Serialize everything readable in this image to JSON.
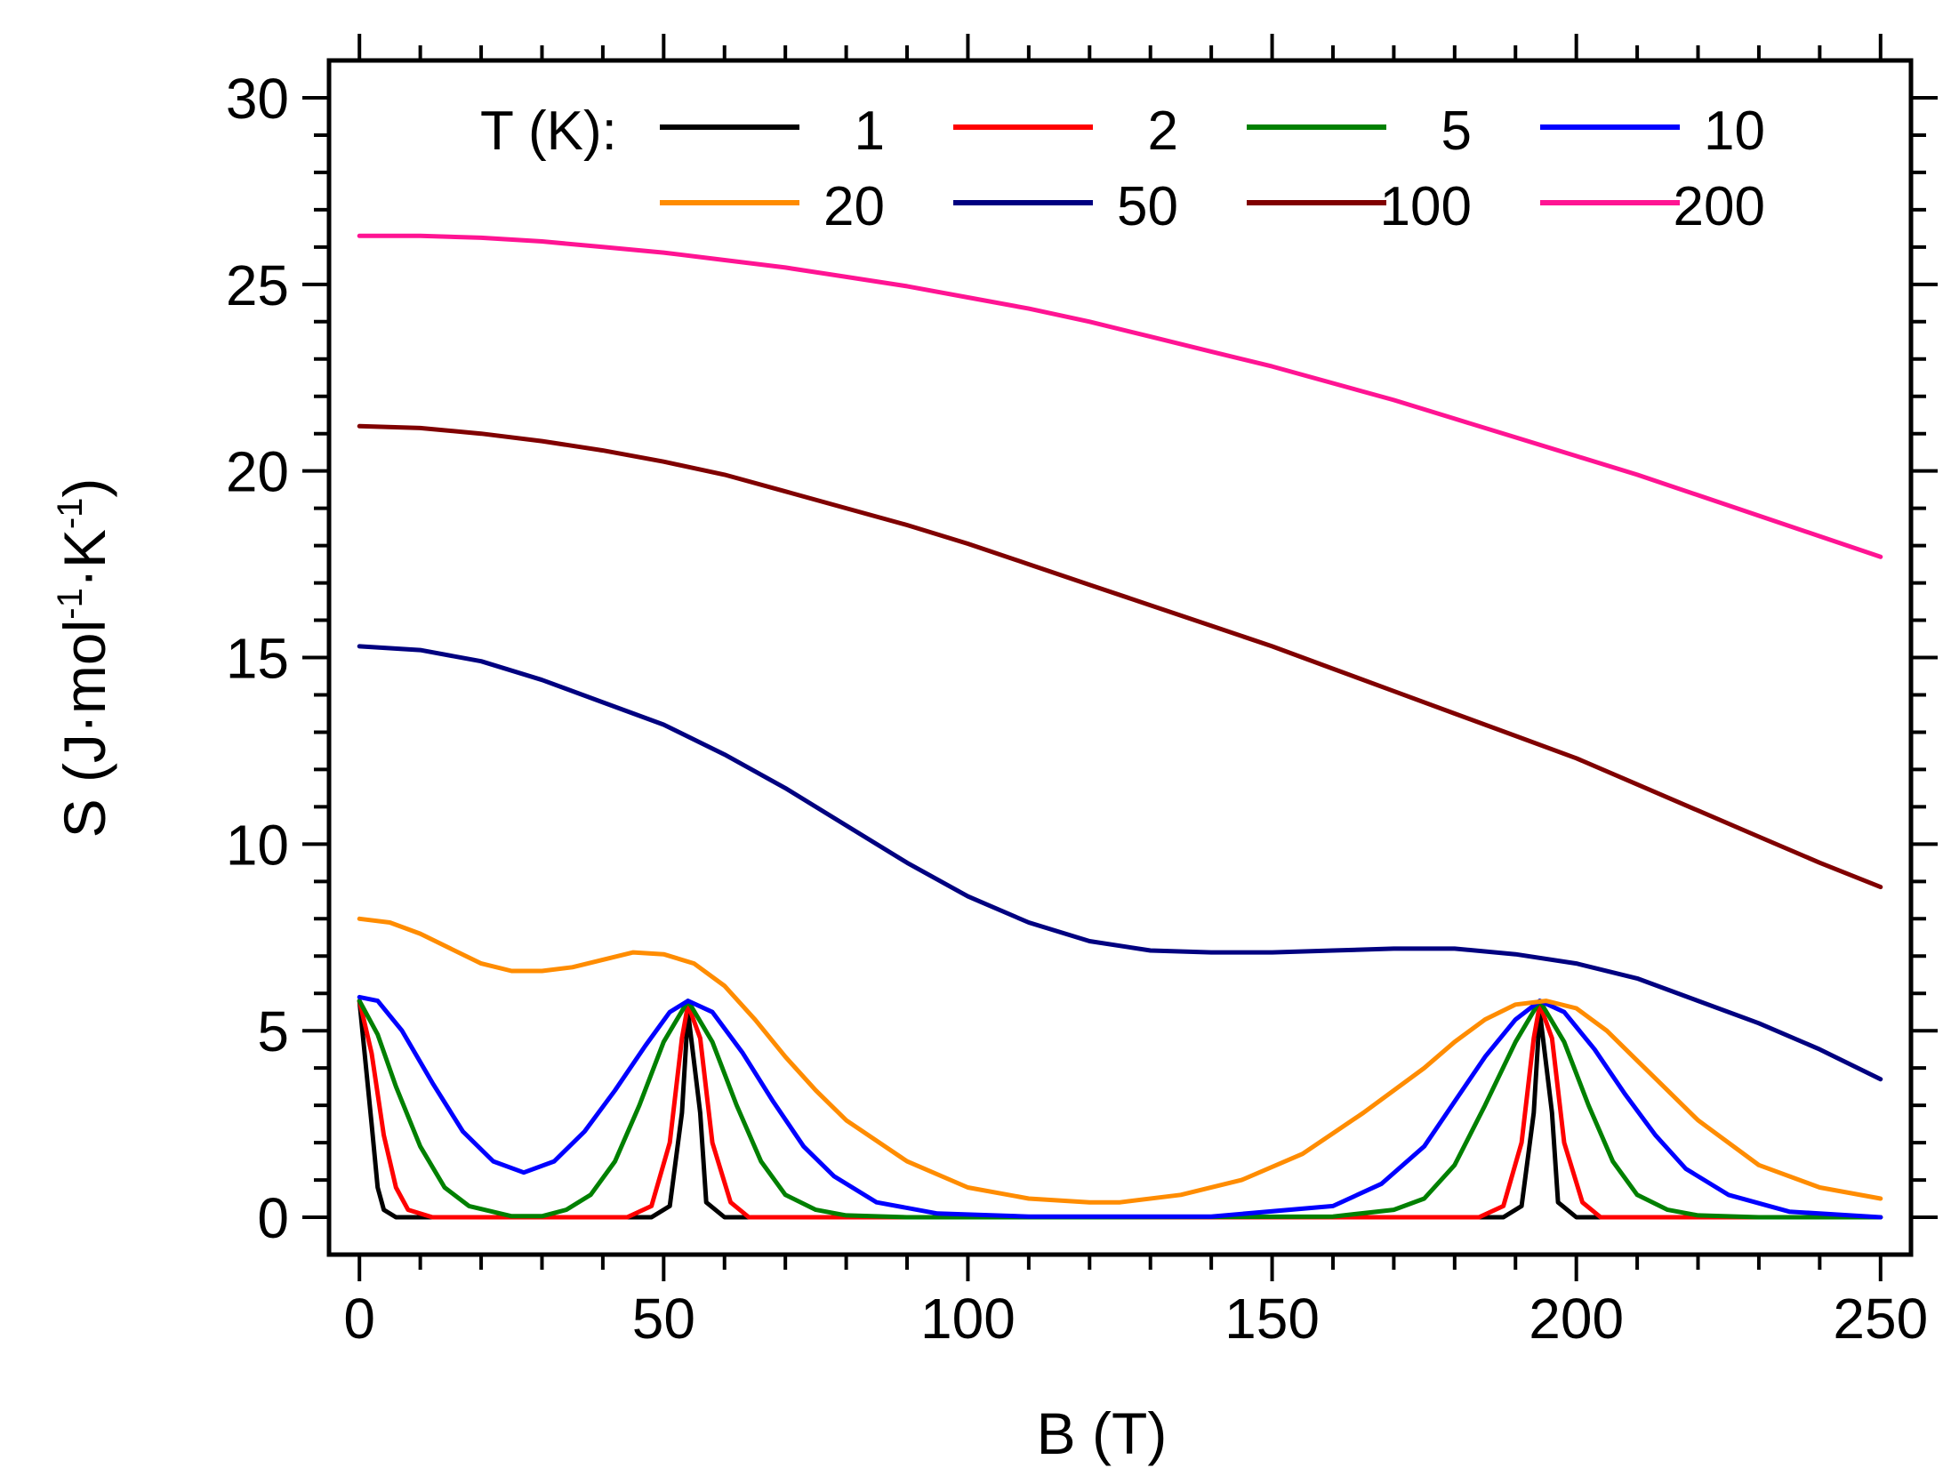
{
  "chart_data": {
    "type": "line",
    "title": "",
    "xlabel": "B (T)",
    "ylabel_main": "S (J·mol",
    "ylabel_sup1": "-1",
    "ylabel_mid": "·K",
    "ylabel_sup2": "-1",
    "ylabel_end": ")",
    "xlim": [
      -5,
      255
    ],
    "ylim": [
      -1,
      31
    ],
    "xticks": [
      0,
      50,
      100,
      150,
      200,
      250
    ],
    "yticks": [
      0,
      5,
      10,
      15,
      20,
      25,
      30
    ],
    "legend_title": "T (K):",
    "legend_location": "top",
    "series": [
      {
        "name": "1",
        "color": "#000000",
        "x": [
          0,
          2,
          3,
          4,
          6,
          10,
          30,
          48,
          51,
          53,
          54,
          56,
          57,
          60,
          80,
          150,
          188,
          191,
          193,
          194,
          196,
          197,
          200,
          220,
          250
        ],
        "y": [
          5.8,
          2.5,
          0.8,
          0.2,
          0,
          0,
          0,
          0,
          0.3,
          2.8,
          5.5,
          2.8,
          0.4,
          0,
          0,
          0,
          0,
          0.3,
          2.8,
          5.5,
          2.8,
          0.4,
          0,
          0,
          0
        ]
      },
      {
        "name": "2",
        "color": "#ff0000",
        "x": [
          0,
          2,
          4,
          6,
          8,
          12,
          30,
          44,
          48,
          51,
          53,
          54,
          56,
          58,
          61,
          64,
          80,
          150,
          184,
          188,
          191,
          193,
          194,
          196,
          198,
          201,
          204,
          220,
          250
        ],
        "y": [
          5.8,
          4.4,
          2.2,
          0.8,
          0.2,
          0,
          0,
          0,
          0.3,
          2,
          4.8,
          5.7,
          4.8,
          2,
          0.4,
          0,
          0,
          0,
          0,
          0.3,
          2,
          4.8,
          5.7,
          4.8,
          2,
          0.4,
          0,
          0,
          0
        ]
      },
      {
        "name": "5",
        "color": "#008000",
        "x": [
          0,
          3,
          6,
          10,
          14,
          18,
          25,
          30,
          34,
          38,
          42,
          46,
          50,
          54,
          58,
          62,
          66,
          70,
          75,
          80,
          90,
          120,
          160,
          170,
          175,
          180,
          185,
          190,
          194,
          198,
          202,
          206,
          210,
          215,
          220,
          230,
          250
        ],
        "y": [
          5.8,
          4.9,
          3.5,
          1.9,
          0.8,
          0.3,
          0.03,
          0.03,
          0.2,
          0.6,
          1.5,
          3,
          4.7,
          5.8,
          4.7,
          3,
          1.5,
          0.6,
          0.2,
          0.05,
          0,
          0,
          0.02,
          0.2,
          0.5,
          1.4,
          3,
          4.7,
          5.8,
          4.7,
          3,
          1.5,
          0.6,
          0.2,
          0.05,
          0,
          0
        ]
      },
      {
        "name": "10",
        "color": "#0000ff",
        "x": [
          0,
          3,
          7,
          12,
          17,
          22,
          27,
          32,
          37,
          42,
          47,
          51,
          54,
          58,
          63,
          68,
          73,
          78,
          85,
          95,
          110,
          140,
          160,
          168,
          175,
          180,
          185,
          190,
          194,
          198,
          203,
          208,
          213,
          218,
          225,
          235,
          250
        ],
        "y": [
          5.9,
          5.8,
          5,
          3.6,
          2.3,
          1.5,
          1.2,
          1.5,
          2.3,
          3.4,
          4.6,
          5.5,
          5.8,
          5.5,
          4.4,
          3.1,
          1.9,
          1.1,
          0.4,
          0.1,
          0.02,
          0.02,
          0.3,
          0.9,
          1.9,
          3.1,
          4.3,
          5.3,
          5.8,
          5.5,
          4.5,
          3.3,
          2.2,
          1.3,
          0.6,
          0.15,
          0
        ]
      },
      {
        "name": "20",
        "color": "#ff8c00",
        "x": [
          0,
          5,
          10,
          15,
          20,
          25,
          30,
          35,
          40,
          45,
          50,
          55,
          60,
          65,
          70,
          75,
          80,
          90,
          100,
          110,
          120,
          125,
          135,
          145,
          155,
          165,
          175,
          180,
          185,
          190,
          195,
          200,
          205,
          210,
          215,
          220,
          230,
          240,
          250
        ],
        "y": [
          8,
          7.9,
          7.6,
          7.2,
          6.8,
          6.6,
          6.6,
          6.7,
          6.9,
          7.1,
          7.05,
          6.8,
          6.2,
          5.3,
          4.3,
          3.4,
          2.6,
          1.5,
          0.8,
          0.5,
          0.4,
          0.4,
          0.6,
          1,
          1.7,
          2.8,
          4,
          4.7,
          5.3,
          5.7,
          5.8,
          5.6,
          5,
          4.2,
          3.4,
          2.6,
          1.4,
          0.8,
          0.5
        ]
      },
      {
        "name": "50",
        "color": "#000080",
        "x": [
          0,
          10,
          20,
          30,
          40,
          50,
          60,
          70,
          80,
          90,
          100,
          110,
          120,
          130,
          140,
          150,
          160,
          170,
          180,
          190,
          200,
          210,
          220,
          230,
          240,
          250
        ],
        "y": [
          15.3,
          15.2,
          14.9,
          14.4,
          13.8,
          13.2,
          12.4,
          11.5,
          10.5,
          9.5,
          8.6,
          7.9,
          7.4,
          7.15,
          7.1,
          7.1,
          7.15,
          7.2,
          7.2,
          7.05,
          6.8,
          6.4,
          5.8,
          5.2,
          4.5,
          3.7
        ]
      },
      {
        "name": "100",
        "color": "#800000",
        "x": [
          0,
          10,
          20,
          30,
          40,
          50,
          60,
          70,
          80,
          90,
          100,
          110,
          120,
          130,
          140,
          150,
          160,
          170,
          180,
          190,
          200,
          210,
          220,
          230,
          240,
          250
        ],
        "y": [
          21.2,
          21.15,
          21,
          20.8,
          20.55,
          20.25,
          19.9,
          19.45,
          19,
          18.55,
          18.05,
          17.5,
          16.95,
          16.4,
          15.85,
          15.3,
          14.7,
          14.1,
          13.5,
          12.9,
          12.3,
          11.6,
          10.9,
          10.2,
          9.5,
          8.85
        ]
      },
      {
        "name": "200",
        "color": "#ff1493",
        "x": [
          0,
          10,
          20,
          30,
          40,
          50,
          60,
          70,
          80,
          90,
          100,
          110,
          120,
          130,
          140,
          150,
          160,
          170,
          180,
          190,
          200,
          210,
          220,
          230,
          240,
          250
        ],
        "y": [
          26.3,
          26.3,
          26.25,
          26.15,
          26,
          25.85,
          25.65,
          25.45,
          25.2,
          24.95,
          24.65,
          24.35,
          24,
          23.6,
          23.2,
          22.8,
          22.35,
          21.9,
          21.4,
          20.9,
          20.4,
          19.9,
          19.35,
          18.8,
          18.25,
          17.7
        ]
      }
    ]
  }
}
